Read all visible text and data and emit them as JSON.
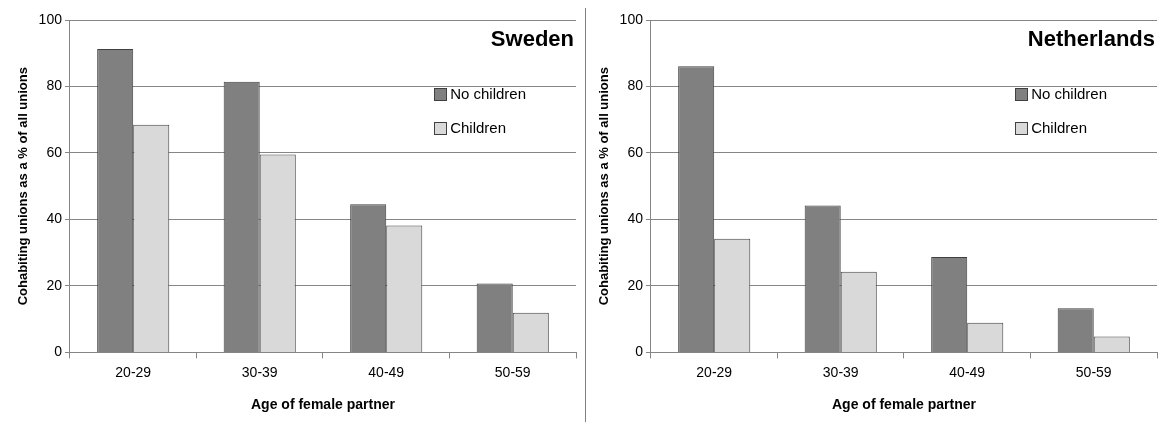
{
  "chart_data": [
    {
      "type": "bar",
      "title": "Sweden",
      "xlabel": "Age of female partner",
      "ylabel": "Cohabiting unions as a % of all unions",
      "categories": [
        "20-29",
        "30-39",
        "40-49",
        "50-59"
      ],
      "series": [
        {
          "name": "No children",
          "color": "#808080",
          "values": [
            91.3,
            81.4,
            44.6,
            20.7
          ]
        },
        {
          "name": "Children",
          "color": "#d9d9d9",
          "values": [
            68.5,
            59.5,
            38.2,
            11.9
          ]
        }
      ],
      "ylim": [
        0,
        100
      ],
      "yticks": [
        0,
        20,
        40,
        60,
        80,
        100
      ],
      "grid": "y",
      "legend": "top right"
    },
    {
      "type": "bar",
      "title": "Netherlands",
      "xlabel": "Age of female partner",
      "ylabel": "Cohabiting unions as a % of all unions",
      "categories": [
        "20-29",
        "30-39",
        "40-49",
        "50-59"
      ],
      "series": [
        {
          "name": "No children",
          "color": "#808080",
          "values": [
            86.1,
            44.2,
            28.7,
            13.3
          ]
        },
        {
          "name": "Children",
          "color": "#d9d9d9",
          "values": [
            34.2,
            24.3,
            8.9,
            4.8
          ]
        }
      ],
      "ylim": [
        0,
        100
      ],
      "yticks": [
        0,
        20,
        40,
        60,
        80,
        100
      ],
      "grid": "y",
      "legend": "top right"
    }
  ]
}
